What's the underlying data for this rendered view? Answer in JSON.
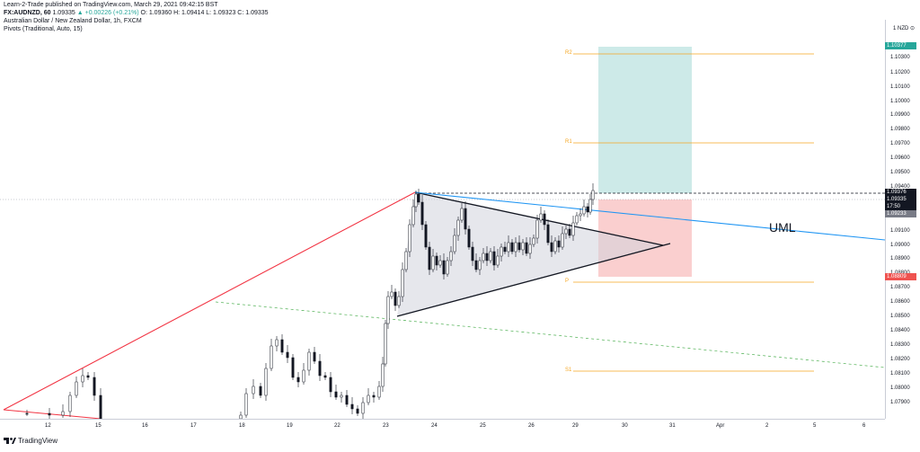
{
  "header": {
    "line1": "Learn-2-Trade published on TradingView.com, March 29, 2021 09:42:15 BST",
    "symbol": "FX:AUDNZD, 60",
    "last": "1.09335",
    "change": "▲ +0.00226 (+0.21%)",
    "ohlc": "O: 1.09360 H: 1.09414 L: 1.09323 C: 1.09335",
    "title": "Australian Dollar / New Zealand Dollar, 1h, FXCM",
    "indicator": "Pivots (Traditional, Auto, 15)"
  },
  "price_axis": {
    "currency": "NZD",
    "ticks": [
      "1.10300",
      "1.10200",
      "1.10100",
      "1.10000",
      "1.09900",
      "1.09800",
      "1.09700",
      "1.09600",
      "1.09500",
      "1.09400",
      "1.09200",
      "1.09100",
      "1.09000",
      "1.08900",
      "1.08800",
      "1.08700",
      "1.08600",
      "1.08500",
      "1.08400",
      "1.08300",
      "1.08200",
      "1.08100",
      "1.08000",
      "1.07900"
    ],
    "badges": [
      {
        "text": "1.10377",
        "color": "#26a69a"
      },
      {
        "text": "1.09376",
        "color": "#131722"
      },
      {
        "text": "1.09335",
        "color": "#131722"
      },
      {
        "text": "17:50",
        "color": "#131722"
      },
      {
        "text": "1.09233",
        "color": "#787b86"
      },
      {
        "text": "1.08809",
        "color": "#ef5350"
      }
    ]
  },
  "time_axis": {
    "ticks": [
      "12",
      "15",
      "16",
      "17",
      "18",
      "19",
      "22",
      "23",
      "24",
      "25",
      "26",
      "29",
      "30",
      "31",
      "Apr",
      "2",
      "5",
      "6"
    ]
  },
  "pivots": {
    "r2": "R2",
    "r1": "R1",
    "p": "P",
    "s1": "S1"
  },
  "annotation": "UML",
  "footer": {
    "brand": "TradingView"
  },
  "colors": {
    "up": "#26a69a",
    "down": "#ef5350",
    "pivot": "#f5a623",
    "trend_blue": "#2196f3",
    "trend_red": "#f23645",
    "green_dash": "#4caf50",
    "triangle_fill": "#d1d4dc"
  }
}
